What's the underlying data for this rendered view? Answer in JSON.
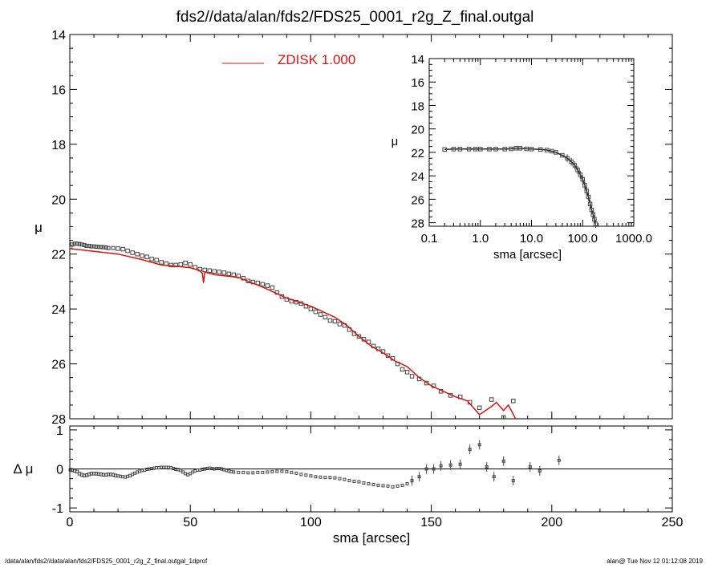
{
  "title": "fds2//data/alan/fds2/FDS25_0001_r2g_Z_final.outgal",
  "footer": {
    "left": "/data/alan/fds2//data/alan/fds2/FDS25_0001_r2g_Z_final.outgal_1dprof",
    "right": "alan@  Tue Nov 12 01:12:08 2019"
  },
  "colors": {
    "model": "#dd1111",
    "points": "#444444",
    "axes": "#000000"
  },
  "chart_data": [
    {
      "type": "scatter",
      "panel": "main",
      "title": "fds2//data/alan/fds2/FDS25_0001_r2g_Z_final.outgal",
      "xlabel": "",
      "ylabel": "μ",
      "xlim": [
        0,
        250
      ],
      "ylim": [
        28,
        14
      ],
      "y_inverted": true,
      "x_ticks": [],
      "y_ticks": [
        14,
        16,
        18,
        20,
        22,
        24,
        26,
        28
      ],
      "legend": {
        "label": "ZDISK",
        "value": "1.000",
        "placement": "top-center"
      },
      "series": [
        {
          "name": "ZDISK",
          "kind": "line",
          "x": [
            0,
            10,
            20,
            30,
            38,
            45,
            50,
            54,
            55,
            55.5,
            56,
            60,
            70,
            80,
            90,
            100,
            110,
            115,
            120,
            125,
            130,
            135,
            140,
            145,
            150,
            155,
            160,
            165,
            170,
            175,
            177,
            180,
            182,
            185
          ],
          "y": [
            21.8,
            21.9,
            22.0,
            22.2,
            22.4,
            22.45,
            22.5,
            22.6,
            22.7,
            23.05,
            22.65,
            22.75,
            22.85,
            23.2,
            23.6,
            23.9,
            24.3,
            24.6,
            25.0,
            25.35,
            25.6,
            25.9,
            26.1,
            26.5,
            26.8,
            27.0,
            27.2,
            27.35,
            27.85,
            27.55,
            27.4,
            27.7,
            27.5,
            28.0
          ]
        },
        {
          "name": "",
          "kind": "points",
          "x": [
            0.3,
            1,
            2,
            3,
            4,
            5,
            6,
            7,
            8,
            9,
            10,
            11,
            12,
            13,
            14,
            15,
            16,
            18,
            20,
            22,
            24,
            26,
            28,
            30,
            32,
            34,
            36,
            38,
            40,
            42,
            44,
            46,
            48,
            50,
            52,
            54,
            56,
            58,
            60,
            62,
            64,
            66,
            68,
            70,
            72,
            74,
            76,
            78,
            80,
            82,
            84,
            86,
            88,
            90,
            92,
            94,
            96,
            98,
            100,
            102,
            104,
            106,
            108,
            110,
            112,
            114,
            116,
            118,
            120,
            122,
            124,
            126,
            128,
            130,
            132,
            134,
            136,
            138,
            140,
            142,
            145,
            148,
            151,
            154,
            158,
            162,
            166,
            170,
            175,
            180,
            184
          ],
          "y": [
            21.75,
            21.65,
            21.62,
            21.62,
            21.63,
            21.65,
            21.67,
            21.7,
            21.7,
            21.72,
            21.72,
            21.73,
            21.74,
            21.74,
            21.75,
            21.76,
            21.78,
            21.78,
            21.8,
            21.82,
            21.88,
            21.95,
            22.0,
            22.06,
            22.1,
            22.18,
            22.22,
            22.3,
            22.35,
            22.4,
            22.4,
            22.38,
            22.32,
            22.38,
            22.48,
            22.55,
            22.58,
            22.6,
            22.63,
            22.65,
            22.68,
            22.72,
            22.75,
            22.8,
            22.88,
            22.98,
            23.02,
            23.05,
            23.1,
            23.15,
            23.22,
            23.4,
            23.55,
            23.65,
            23.72,
            23.75,
            23.8,
            23.9,
            24.0,
            24.1,
            24.2,
            24.3,
            24.42,
            24.45,
            24.55,
            24.6,
            24.75,
            24.9,
            25.0,
            25.1,
            25.2,
            25.35,
            25.45,
            25.55,
            25.7,
            25.8,
            26.0,
            26.2,
            26.3,
            26.45,
            26.55,
            26.7,
            26.8,
            27.0,
            27.15,
            27.2,
            27.4,
            27.6,
            27.3,
            27.95,
            27.35
          ]
        }
      ]
    },
    {
      "type": "scatter",
      "panel": "inset",
      "xlabel": "sma [arcsec]",
      "ylabel": "μ",
      "x_scale": "log",
      "xlim": [
        0.1,
        1000
      ],
      "ylim": [
        28.3,
        14
      ],
      "y_inverted": true,
      "x_ticks": [
        "0.1",
        "1.0",
        "10.0",
        "100.0",
        "1000.0"
      ],
      "x_tick_values": [
        0.1,
        1,
        10,
        100,
        1000
      ],
      "y_ticks": [
        14,
        16,
        18,
        20,
        22,
        24,
        26,
        28
      ],
      "series": [
        {
          "name": "",
          "kind": "points+line",
          "x": [
            0.2,
            0.3,
            0.4,
            0.6,
            0.8,
            1,
            1.5,
            2,
            3,
            4,
            5,
            6,
            8,
            10,
            15,
            20,
            25,
            30,
            40,
            50,
            60,
            70,
            80,
            90,
            100,
            110,
            120,
            130,
            140,
            150,
            160,
            170,
            180
          ],
          "y": [
            21.75,
            21.72,
            21.72,
            21.72,
            21.72,
            21.72,
            21.72,
            21.72,
            21.72,
            21.7,
            21.65,
            21.65,
            21.7,
            21.72,
            21.75,
            21.8,
            21.9,
            22.0,
            22.25,
            22.5,
            22.8,
            23.1,
            23.5,
            23.9,
            24.3,
            24.8,
            25.3,
            25.8,
            26.4,
            26.9,
            27.3,
            27.7,
            28.1
          ]
        }
      ]
    },
    {
      "type": "scatter",
      "panel": "residual",
      "xlabel": "sma [arcsec]",
      "ylabel": "Δ μ",
      "xlim": [
        0,
        250
      ],
      "ylim": [
        -1.1,
        1.1
      ],
      "x_ticks": [
        0,
        50,
        100,
        150,
        200,
        250
      ],
      "y_ticks": [
        -1,
        0,
        1
      ],
      "reference_line": 0,
      "series": [
        {
          "name": "",
          "kind": "points",
          "x": [
            0.3,
            1,
            2,
            3,
            4,
            5,
            6,
            7,
            8,
            9,
            10,
            11,
            12,
            13,
            14,
            15,
            16,
            17,
            18,
            19,
            20,
            21,
            22,
            23,
            24,
            25,
            26,
            27,
            28,
            29,
            30,
            31,
            32,
            33,
            34,
            35,
            36,
            37,
            38,
            39,
            40,
            41,
            42,
            43,
            44,
            45,
            46,
            47,
            48,
            49,
            50,
            51,
            52,
            53,
            54,
            55,
            56,
            57,
            58,
            59,
            60,
            61,
            62,
            63,
            64,
            65,
            66,
            67,
            68,
            70,
            72,
            74,
            76,
            78,
            80,
            82,
            84,
            86,
            88,
            90,
            92,
            94,
            96,
            98,
            100,
            102,
            104,
            106,
            108,
            110,
            112,
            114,
            116,
            118,
            120,
            122,
            124,
            126,
            128,
            130,
            132,
            134,
            136,
            138,
            140,
            142,
            145,
            148,
            151,
            154,
            158,
            162,
            166,
            170,
            173,
            176,
            180,
            184,
            191,
            195,
            203
          ],
          "y": [
            -0.02,
            -0.03,
            -0.05,
            -0.07,
            -0.12,
            -0.15,
            -0.17,
            -0.16,
            -0.14,
            -0.12,
            -0.12,
            -0.12,
            -0.13,
            -0.14,
            -0.15,
            -0.15,
            -0.14,
            -0.14,
            -0.15,
            -0.17,
            -0.18,
            -0.19,
            -0.2,
            -0.21,
            -0.19,
            -0.17,
            -0.14,
            -0.11,
            -0.08,
            -0.06,
            -0.04,
            -0.03,
            -0.01,
            0.0,
            0.01,
            0.02,
            0.03,
            0.03,
            0.04,
            0.04,
            0.04,
            0.04,
            0.03,
            0.01,
            -0.01,
            -0.02,
            -0.04,
            -0.08,
            -0.12,
            -0.15,
            -0.12,
            -0.08,
            -0.05,
            -0.03,
            -0.03,
            -0.01,
            0.0,
            0.01,
            0.02,
            0.01,
            0.0,
            0.01,
            0.01,
            0.0,
            -0.02,
            -0.04,
            -0.05,
            -0.07,
            -0.08,
            -0.09,
            -0.09,
            -0.1,
            -0.1,
            -0.09,
            -0.09,
            -0.08,
            -0.07,
            -0.06,
            -0.06,
            -0.07,
            -0.09,
            -0.11,
            -0.14,
            -0.16,
            -0.18,
            -0.2,
            -0.21,
            -0.22,
            -0.22,
            -0.23,
            -0.25,
            -0.27,
            -0.3,
            -0.32,
            -0.33,
            -0.36,
            -0.38,
            -0.4,
            -0.42,
            -0.43,
            -0.44,
            -0.46,
            -0.44,
            -0.42,
            -0.38,
            -0.3,
            -0.2,
            0.0,
            0.0,
            0.08,
            0.1,
            0.12,
            0.5,
            0.62,
            0.05,
            -0.2,
            0.2,
            -0.3,
            0.05,
            -0.05,
            0.22
          ]
        }
      ]
    }
  ]
}
